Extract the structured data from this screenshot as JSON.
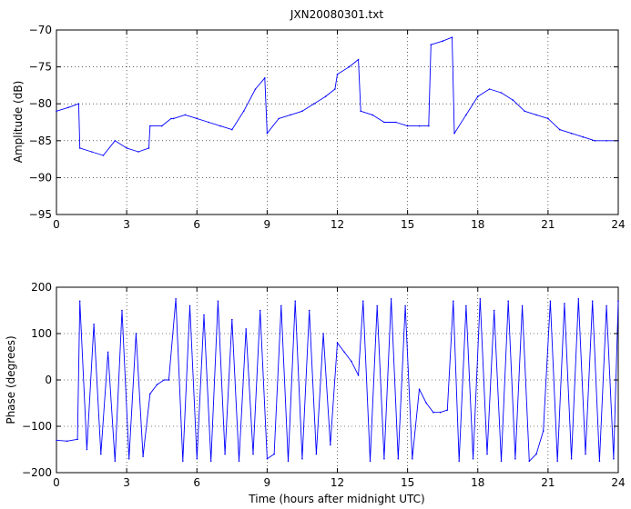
{
  "chart_data": [
    {
      "type": "line",
      "title": "JXN20080301.txt",
      "xlabel": "",
      "ylabel": "Amplitude (dB)",
      "xlim": [
        0,
        24
      ],
      "ylim": [
        -95,
        -70
      ],
      "xticks": [
        0,
        3,
        6,
        9,
        12,
        15,
        18,
        21,
        24
      ],
      "xtick_labels": [
        "0",
        "3",
        "6",
        "9",
        "12",
        "15",
        "18",
        "21",
        "24"
      ],
      "yticks": [
        -95,
        -90,
        -85,
        -80,
        -75,
        -70
      ],
      "ytick_labels": [
        "−95",
        "−90",
        "−85",
        "−80",
        "−75",
        "−70"
      ],
      "grid": true,
      "color": "#0000ff",
      "series": [
        {
          "x": [
            0,
            0.5,
            0.95,
            1.0,
            1.5,
            2.0,
            2.5,
            3.0,
            3.5,
            3.95,
            4.0,
            4.5,
            4.9,
            5.0,
            5.5,
            6.0,
            6.5,
            7.0,
            7.5,
            8.0,
            8.5,
            8.9,
            9.0,
            9.5,
            10.0,
            10.5,
            11.0,
            11.5,
            11.9,
            12.0,
            12.5,
            12.9,
            13.0,
            13.5,
            14.0,
            14.5,
            15.0,
            15.5,
            15.9,
            16.0,
            16.5,
            16.9,
            17.0,
            17.5,
            18.0,
            18.5,
            19.0,
            19.5,
            20.0,
            20.5,
            21.0,
            21.5,
            22.0,
            22.5,
            23.0,
            23.5,
            24.0
          ],
          "y": [
            -81,
            -80.5,
            -80,
            -86,
            -86.5,
            -87,
            -85,
            -86,
            -86.5,
            -86,
            -83,
            -83,
            -82,
            -82,
            -81.5,
            -82,
            -82.5,
            -83,
            -83.5,
            -81,
            -78,
            -76.5,
            -84,
            -82,
            -81.5,
            -81,
            -80,
            -79,
            -78,
            -76,
            -75,
            -74,
            -81,
            -81.5,
            -82.5,
            -82.5,
            -83,
            -83,
            -83,
            -72,
            -71.5,
            -71,
            -84,
            -81.5,
            -79,
            -78,
            -78.5,
            -79.5,
            -81,
            -81.5,
            -82,
            -83.5,
            -84,
            -84.5,
            -85,
            -85,
            -85
          ]
        }
      ]
    },
    {
      "type": "line",
      "title": "",
      "xlabel": "Time (hours after midnight UTC)",
      "ylabel": "Phase (degrees)",
      "xlim": [
        0,
        24
      ],
      "ylim": [
        -200,
        200
      ],
      "xticks": [
        0,
        3,
        6,
        9,
        12,
        15,
        18,
        21,
        24
      ],
      "xtick_labels": [
        "0",
        "3",
        "6",
        "9",
        "12",
        "15",
        "18",
        "21",
        "24"
      ],
      "yticks": [
        -200,
        -100,
        0,
        100,
        200
      ],
      "ytick_labels": [
        "−200",
        "−100",
        "0",
        "100",
        "200"
      ],
      "grid": true,
      "color": "#0000ff",
      "series": [
        {
          "x": [
            0,
            0.45,
            0.9,
            1.0,
            1.3,
            1.6,
            1.9,
            2.2,
            2.5,
            2.8,
            3.1,
            3.4,
            3.7,
            4.0,
            4.3,
            4.6,
            4.8,
            5.1,
            5.4,
            5.7,
            6.0,
            6.3,
            6.6,
            6.9,
            7.2,
            7.5,
            7.8,
            8.1,
            8.4,
            8.7,
            9.0,
            9.3,
            9.6,
            9.9,
            10.2,
            10.5,
            10.8,
            11.1,
            11.4,
            11.7,
            12.0,
            12.3,
            12.6,
            12.9,
            13.1,
            13.4,
            13.7,
            14.0,
            14.3,
            14.6,
            14.9,
            15.2,
            15.5,
            15.8,
            16.1,
            16.4,
            16.7,
            16.95,
            17.2,
            17.5,
            17.8,
            18.1,
            18.4,
            18.7,
            19.0,
            19.3,
            19.6,
            19.9,
            20.2,
            20.5,
            20.8,
            21.1,
            21.4,
            21.7,
            22.0,
            22.3,
            22.6,
            22.9,
            23.2,
            23.5,
            23.8,
            24.0
          ],
          "y": [
            -130,
            -132,
            -128,
            170,
            -150,
            120,
            -160,
            60,
            -175,
            150,
            -170,
            100,
            -165,
            -30,
            -10,
            0,
            0,
            175,
            -175,
            160,
            -170,
            140,
            -175,
            170,
            -160,
            130,
            -175,
            110,
            -160,
            150,
            -170,
            -160,
            160,
            -175,
            170,
            -170,
            150,
            -160,
            100,
            -140,
            80,
            60,
            40,
            10,
            170,
            -175,
            160,
            -170,
            175,
            -170,
            160,
            -170,
            -20,
            -50,
            -70,
            -70,
            -65,
            170,
            -175,
            160,
            -170,
            175,
            -160,
            150,
            -175,
            170,
            -170,
            160,
            -175,
            -160,
            -110,
            170,
            -175,
            165,
            -170,
            175,
            -160,
            170,
            -175,
            160,
            -170,
            170
          ]
        }
      ]
    }
  ]
}
